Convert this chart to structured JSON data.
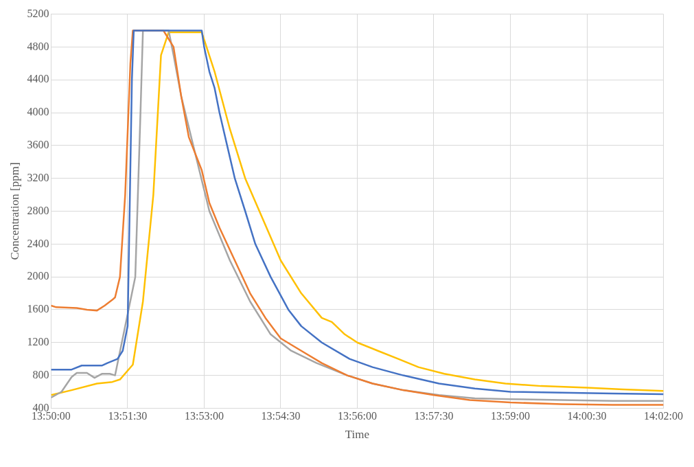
{
  "chart_data": {
    "type": "line",
    "xlabel": "Time",
    "ylabel": "Concentration [ppm]",
    "xlim": [
      13.8333,
      14.0333
    ],
    "ylim": [
      400,
      5200
    ],
    "xticks": [
      {
        "value": 13.8333,
        "label": "13:50:00"
      },
      {
        "value": 13.8583,
        "label": "13:51:30"
      },
      {
        "value": 13.8833,
        "label": "13:53:00"
      },
      {
        "value": 13.9083,
        "label": "13:54:30"
      },
      {
        "value": 13.9333,
        "label": "13:56:00"
      },
      {
        "value": 13.9583,
        "label": "13:57:30"
      },
      {
        "value": 13.9833,
        "label": "13:59:00"
      },
      {
        "value": 14.0083,
        "label": "14:00:30"
      },
      {
        "value": 14.0333,
        "label": "14:02:00"
      }
    ],
    "yticks": [
      400,
      800,
      1200,
      1600,
      2000,
      2400,
      2800,
      3200,
      3600,
      4000,
      4400,
      4800,
      5200
    ],
    "grid": true,
    "legend": false,
    "marker": "none",
    "line_style": "solid",
    "series": [
      {
        "color": "#4472c4",
        "x": [
          13.8333,
          13.84,
          13.8433,
          13.85,
          13.8517,
          13.855,
          13.8567,
          13.8583,
          13.8597,
          13.8603,
          13.8825,
          13.8833,
          13.885,
          13.8867,
          13.8883,
          13.8908,
          13.8933,
          13.8967,
          13.9,
          13.905,
          13.9108,
          13.915,
          13.9217,
          13.9308,
          13.9383,
          13.9483,
          13.96,
          13.9717,
          13.9833,
          14.0,
          14.0167,
          14.0333
        ],
        "values": [
          870,
          870,
          920,
          920,
          950,
          1000,
          1100,
          1400,
          4400,
          5000,
          5000,
          4800,
          4500,
          4300,
          4000,
          3600,
          3200,
          2800,
          2400,
          2000,
          1600,
          1400,
          1200,
          1000,
          900,
          800,
          700,
          640,
          600,
          590,
          580,
          570
        ]
      },
      {
        "color": "#ed7d31",
        "x": [
          13.8333,
          13.835,
          13.8417,
          13.845,
          13.8483,
          13.8508,
          13.8533,
          13.8542,
          13.8558,
          13.8575,
          13.8592,
          13.86,
          13.87,
          13.8733,
          13.8758,
          13.8783,
          13.8825,
          13.885,
          13.8883,
          13.8933,
          13.8983,
          13.9033,
          13.9083,
          13.915,
          13.9217,
          13.93,
          13.9383,
          13.9483,
          13.9583,
          13.97,
          13.9833,
          14.0,
          14.0167,
          14.0333
        ],
        "values": [
          1650,
          1630,
          1620,
          1600,
          1590,
          1650,
          1720,
          1750,
          2000,
          3000,
          4600,
          5000,
          5000,
          4800,
          4200,
          3700,
          3300,
          2900,
          2600,
          2200,
          1800,
          1500,
          1250,
          1100,
          950,
          800,
          700,
          620,
          560,
          500,
          470,
          450,
          440,
          440
        ]
      },
      {
        "color": "#a5a5a5",
        "x": [
          13.8333,
          13.8367,
          13.84,
          13.8417,
          13.845,
          13.8475,
          13.85,
          13.8525,
          13.8542,
          13.8608,
          13.8625,
          13.8633,
          13.8717,
          13.8733,
          13.8758,
          13.8817,
          13.885,
          13.8917,
          13.8983,
          13.905,
          13.9117,
          13.92,
          13.93,
          13.9383,
          13.9483,
          13.96,
          13.9717,
          13.9833,
          14.0,
          14.0167,
          14.0333
        ],
        "values": [
          530,
          600,
          780,
          830,
          830,
          770,
          820,
          820,
          800,
          2000,
          4000,
          5000,
          5000,
          4700,
          4200,
          3300,
          2800,
          2200,
          1700,
          1300,
          1100,
          950,
          800,
          700,
          620,
          560,
          520,
          510,
          500,
          490,
          490
        ]
      },
      {
        "color": "#ffc000",
        "x": [
          13.8333,
          13.84,
          13.8483,
          13.8533,
          13.8558,
          13.86,
          13.8633,
          13.8667,
          13.8692,
          13.8717,
          13.8825,
          13.8867,
          13.8917,
          13.8967,
          13.9025,
          13.9083,
          13.915,
          13.9217,
          13.925,
          13.9292,
          13.9333,
          13.94,
          13.9467,
          13.9533,
          13.9617,
          13.9717,
          13.9817,
          13.9933,
          14.0083,
          14.02,
          14.0333
        ],
        "values": [
          560,
          620,
          700,
          720,
          750,
          930,
          1700,
          3000,
          4700,
          4980,
          4980,
          4500,
          3800,
          3200,
          2700,
          2200,
          1800,
          1500,
          1450,
          1300,
          1200,
          1100,
          1000,
          900,
          820,
          750,
          700,
          670,
          650,
          630,
          610
        ]
      }
    ]
  }
}
